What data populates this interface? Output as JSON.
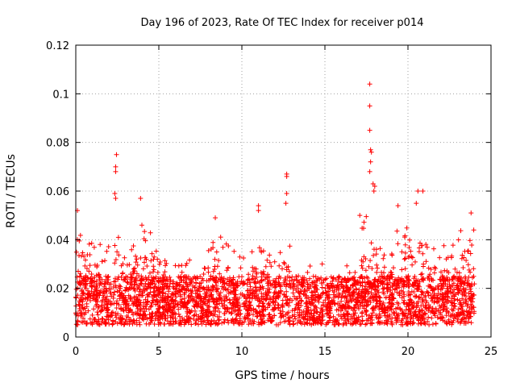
{
  "chart_data": {
    "type": "scatter",
    "title": "Day 196 of 2023, Rate Of TEC Index for receiver p014",
    "xlabel": "GPS time / hours",
    "ylabel": "ROTI / TECUs",
    "xlim": [
      0,
      25
    ],
    "ylim": [
      0,
      0.12
    ],
    "x_ticks": [
      0,
      5,
      10,
      15,
      20,
      25
    ],
    "x_tick_labels": [
      "0",
      "5",
      "10",
      "15",
      "20",
      "25"
    ],
    "y_ticks": [
      0,
      0.02,
      0.04,
      0.06,
      0.08,
      0.1,
      0.12
    ],
    "y_tick_labels": [
      "0",
      "0.02",
      "0.04",
      "0.06",
      "0.08",
      "0.1",
      "0.12"
    ],
    "grid": true,
    "marker": "plus",
    "color": "#ff0000",
    "x_range_data": [
      0,
      24
    ],
    "baseline_range": [
      0.005,
      0.025
    ],
    "notable_points": [
      {
        "x": 2.45,
        "y": 0.075
      },
      {
        "x": 2.4,
        "y": 0.07
      },
      {
        "x": 2.4,
        "y": 0.068
      },
      {
        "x": 2.35,
        "y": 0.059
      },
      {
        "x": 2.4,
        "y": 0.057
      },
      {
        "x": 3.9,
        "y": 0.057
      },
      {
        "x": 0.1,
        "y": 0.052
      },
      {
        "x": 11.0,
        "y": 0.054
      },
      {
        "x": 11.0,
        "y": 0.052
      },
      {
        "x": 12.7,
        "y": 0.067
      },
      {
        "x": 12.7,
        "y": 0.066
      },
      {
        "x": 12.7,
        "y": 0.059
      },
      {
        "x": 12.65,
        "y": 0.055
      },
      {
        "x": 17.7,
        "y": 0.104
      },
      {
        "x": 17.7,
        "y": 0.095
      },
      {
        "x": 17.7,
        "y": 0.085
      },
      {
        "x": 17.75,
        "y": 0.077
      },
      {
        "x": 17.8,
        "y": 0.076
      },
      {
        "x": 17.75,
        "y": 0.072
      },
      {
        "x": 17.7,
        "y": 0.068
      },
      {
        "x": 17.9,
        "y": 0.063
      },
      {
        "x": 18.0,
        "y": 0.062
      },
      {
        "x": 17.95,
        "y": 0.06
      },
      {
        "x": 19.4,
        "y": 0.054
      },
      {
        "x": 20.6,
        "y": 0.06
      },
      {
        "x": 20.9,
        "y": 0.06
      },
      {
        "x": 20.5,
        "y": 0.055
      },
      {
        "x": 23.8,
        "y": 0.051
      },
      {
        "x": 8.4,
        "y": 0.049
      },
      {
        "x": 17.1,
        "y": 0.05
      }
    ],
    "activity_envelope": [
      {
        "x": 0,
        "peak": 0.05
      },
      {
        "x": 1,
        "peak": 0.04
      },
      {
        "x": 2,
        "peak": 0.038
      },
      {
        "x": 2.4,
        "peak": 0.05
      },
      {
        "x": 3,
        "peak": 0.035
      },
      {
        "x": 4,
        "peak": 0.05
      },
      {
        "x": 4.5,
        "peak": 0.046
      },
      {
        "x": 5,
        "peak": 0.035
      },
      {
        "x": 6,
        "peak": 0.03
      },
      {
        "x": 7,
        "peak": 0.035
      },
      {
        "x": 8,
        "peak": 0.036
      },
      {
        "x": 8.5,
        "peak": 0.045
      },
      {
        "x": 9,
        "peak": 0.04
      },
      {
        "x": 10,
        "peak": 0.035
      },
      {
        "x": 11,
        "peak": 0.04
      },
      {
        "x": 12,
        "peak": 0.033
      },
      {
        "x": 12.7,
        "peak": 0.045
      },
      {
        "x": 13,
        "peak": 0.035
      },
      {
        "x": 14,
        "peak": 0.032
      },
      {
        "x": 15,
        "peak": 0.03
      },
      {
        "x": 16,
        "peak": 0.025
      },
      {
        "x": 17,
        "peak": 0.04
      },
      {
        "x": 17.7,
        "peak": 0.055
      },
      {
        "x": 18.5,
        "peak": 0.04
      },
      {
        "x": 19.4,
        "peak": 0.045
      },
      {
        "x": 20,
        "peak": 0.045
      },
      {
        "x": 20.7,
        "peak": 0.05
      },
      {
        "x": 21.5,
        "peak": 0.04
      },
      {
        "x": 22.5,
        "peak": 0.037
      },
      {
        "x": 23.5,
        "peak": 0.048
      },
      {
        "x": 24,
        "peak": 0.045
      }
    ]
  }
}
